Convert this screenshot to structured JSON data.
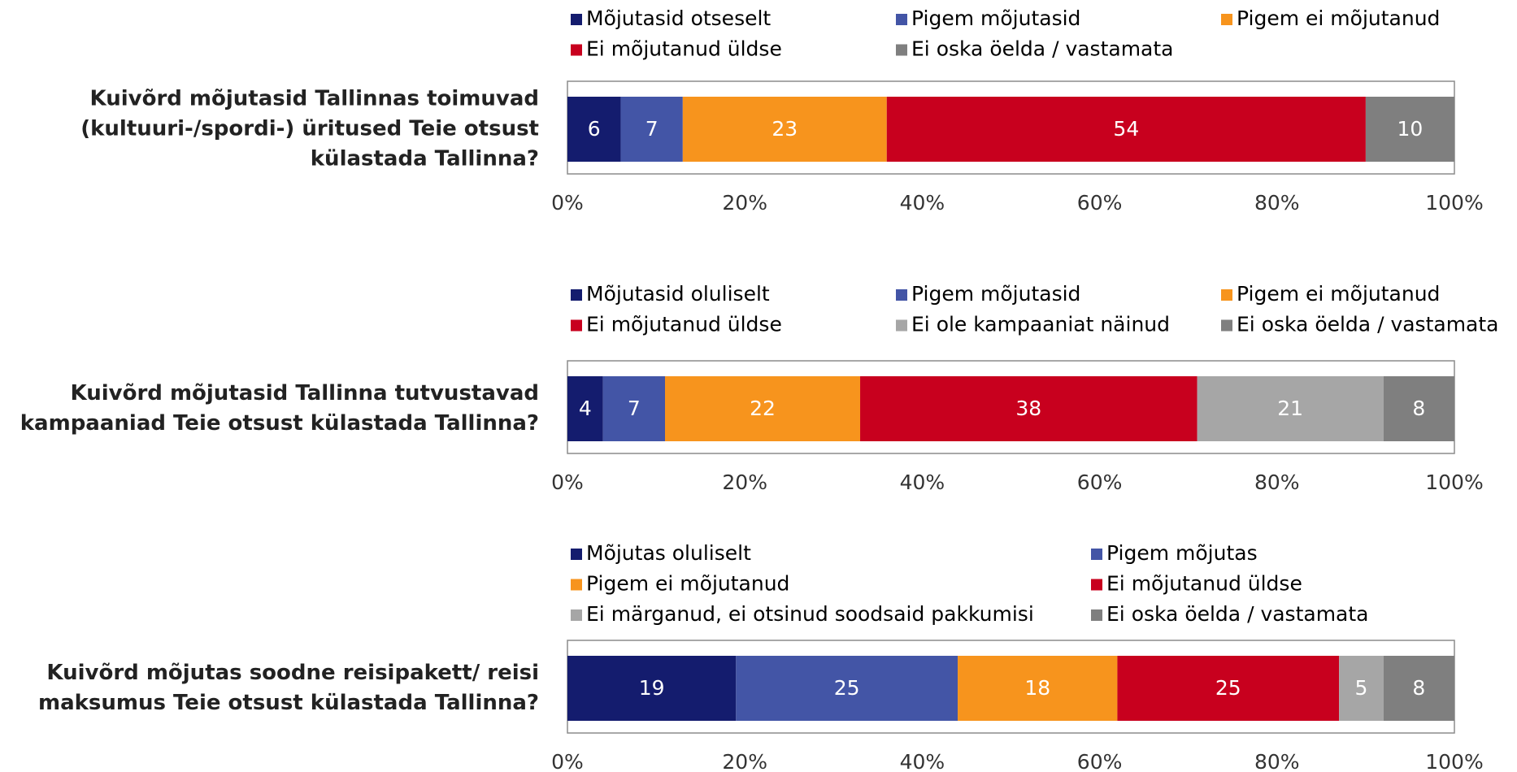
{
  "chart_data": [
    {
      "type": "bar",
      "orientation": "horizontal",
      "stacked": true,
      "categories": [
        "Kuivõrd mõjutasid Tallinnas toimuvad (kultuuri-/spordi-) üritused Teie otsust külastada Tallinna?"
      ],
      "xlim": [
        0,
        100
      ],
      "xticks": [
        {
          "value": 0,
          "label": "0%"
        },
        {
          "value": 20,
          "label": "20%"
        },
        {
          "value": 40,
          "label": "40%"
        },
        {
          "value": 60,
          "label": "60%"
        },
        {
          "value": 80,
          "label": "80%"
        },
        {
          "value": 100,
          "label": "100%"
        }
      ],
      "series": [
        {
          "name": "Mõjutasid otseselt",
          "color": "#141c6e",
          "values": [
            6
          ]
        },
        {
          "name": "Pigem mõjutasid",
          "color": "#4355a6",
          "values": [
            7
          ]
        },
        {
          "name": "Pigem ei mõjutanud",
          "color": "#f7941d",
          "values": [
            23
          ]
        },
        {
          "name": "Ei mõjutanud üldse",
          "color": "#c8001e",
          "values": [
            54
          ]
        },
        {
          "name": "Ei oska öelda / vastamata",
          "color": "#7f7f7f",
          "values": [
            10
          ]
        }
      ]
    },
    {
      "type": "bar",
      "orientation": "horizontal",
      "stacked": true,
      "categories": [
        "Kuivõrd mõjutasid Tallinna tutvustavad kampaaniad Teie otsust külastada Tallinna?"
      ],
      "xlim": [
        0,
        100
      ],
      "xticks": [
        {
          "value": 0,
          "label": "0%"
        },
        {
          "value": 20,
          "label": "20%"
        },
        {
          "value": 40,
          "label": "40%"
        },
        {
          "value": 60,
          "label": "60%"
        },
        {
          "value": 80,
          "label": "80%"
        },
        {
          "value": 100,
          "label": "100%"
        }
      ],
      "series": [
        {
          "name": "Mõjutasid oluliselt",
          "color": "#141c6e",
          "values": [
            4
          ]
        },
        {
          "name": "Pigem mõjutasid",
          "color": "#4355a6",
          "values": [
            7
          ]
        },
        {
          "name": "Pigem ei mõjutanud",
          "color": "#f7941d",
          "values": [
            22
          ]
        },
        {
          "name": "Ei mõjutanud üldse",
          "color": "#c8001e",
          "values": [
            38
          ]
        },
        {
          "name": "Ei ole kampaaniat näinud",
          "color": "#a6a6a6",
          "values": [
            21
          ]
        },
        {
          "name": "Ei oska öelda / vastamata",
          "color": "#7f7f7f",
          "values": [
            8
          ]
        }
      ]
    },
    {
      "type": "bar",
      "orientation": "horizontal",
      "stacked": true,
      "categories": [
        "Kuivõrd mõjutas soodne reisipakett/ reisi maksumus Teie otsust külastada Tallinna?"
      ],
      "xlim": [
        0,
        100
      ],
      "xticks": [
        {
          "value": 0,
          "label": "0%"
        },
        {
          "value": 20,
          "label": "20%"
        },
        {
          "value": 40,
          "label": "40%"
        },
        {
          "value": 60,
          "label": "60%"
        },
        {
          "value": 80,
          "label": "80%"
        },
        {
          "value": 100,
          "label": "100%"
        }
      ],
      "series": [
        {
          "name": "Mõjutas oluliselt",
          "color": "#141c6e",
          "values": [
            19
          ]
        },
        {
          "name": "Pigem mõjutas",
          "color": "#4355a6",
          "values": [
            25
          ]
        },
        {
          "name": "Pigem ei mõjutanud",
          "color": "#f7941d",
          "values": [
            18
          ]
        },
        {
          "name": "Ei mõjutanud üldse",
          "color": "#c8001e",
          "values": [
            25
          ]
        },
        {
          "name": "Ei märganud, ei otsinud soodsaid pakkumisi",
          "color": "#a6a6a6",
          "values": [
            5
          ]
        },
        {
          "name": "Ei oska öelda / vastamata",
          "color": "#7f7f7f",
          "values": [
            8
          ]
        }
      ]
    }
  ]
}
